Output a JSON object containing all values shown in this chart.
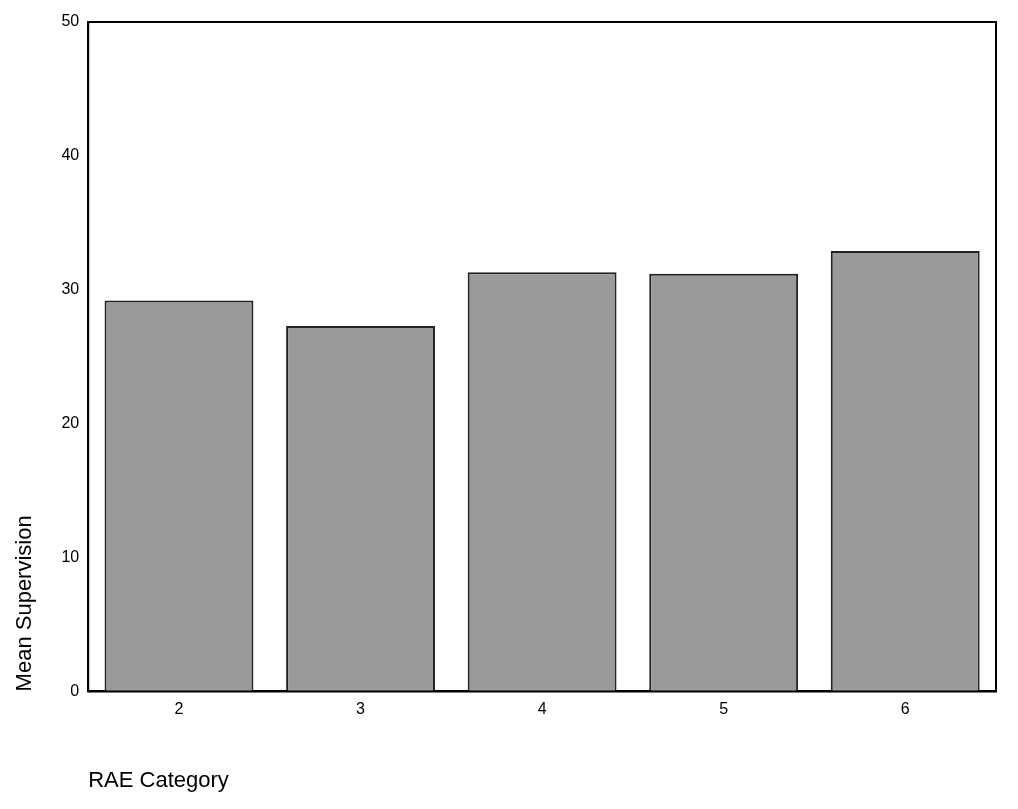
{
  "chart_data": {
    "type": "bar",
    "xlabel": "RAE Category",
    "ylabel": "Mean Supervision",
    "categories": [
      "2",
      "3",
      "4",
      "5",
      "6"
    ],
    "values": [
      29.2,
      27.3,
      31.3,
      31.2,
      32.9
    ],
    "color": "#9a9a9a",
    "ylim": [
      0,
      50
    ],
    "yticks": [
      0,
      10,
      20,
      30,
      40,
      50
    ],
    "grid": false,
    "legend": false
  }
}
